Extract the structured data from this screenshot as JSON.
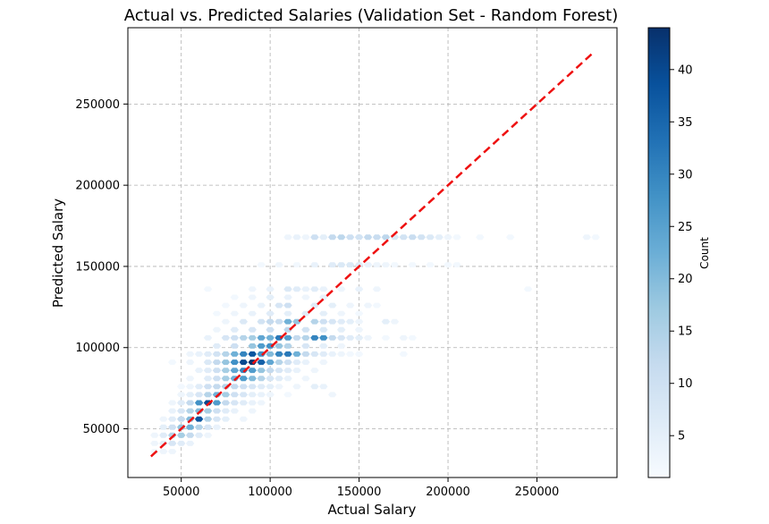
{
  "chart_data": {
    "type": "heatmap",
    "subtype": "hexbin",
    "title": "Actual vs. Predicted Salaries (Validation Set - Random Forest)",
    "xlabel": "Actual Salary",
    "ylabel": "Predicted Salary",
    "xlim": [
      20000,
      295000
    ],
    "ylim": [
      20000,
      297000
    ],
    "xticks": [
      "50000",
      "100000",
      "150000",
      "200000",
      "250000"
    ],
    "yticks": [
      "50000",
      "100000",
      "150000",
      "200000",
      "250000"
    ],
    "xtick_values": [
      50000,
      100000,
      150000,
      200000,
      250000
    ],
    "ytick_values": [
      50000,
      100000,
      150000,
      200000,
      250000
    ],
    "grid": true,
    "colormap": "Blues",
    "colorbar": {
      "label": "Count",
      "min": 1,
      "max": 44,
      "ticks": [
        "5",
        "10",
        "15",
        "20",
        "25",
        "30",
        "35",
        "40"
      ],
      "tick_values": [
        5,
        10,
        15,
        20,
        25,
        30,
        35,
        40
      ]
    },
    "reference_line": {
      "style": "dashed",
      "color": "#ee1111",
      "from": [
        33000,
        33000
      ],
      "to": [
        282000,
        282000
      ]
    },
    "cells": [
      [
        168000,
        110000,
        3
      ],
      [
        168000,
        115000,
        4
      ],
      [
        168000,
        120000,
        3
      ],
      [
        168000,
        125000,
        10
      ],
      [
        168000,
        130000,
        5
      ],
      [
        168000,
        135000,
        12
      ],
      [
        168000,
        140000,
        13
      ],
      [
        168000,
        145000,
        10
      ],
      [
        168000,
        150000,
        9
      ],
      [
        168000,
        155000,
        12
      ],
      [
        168000,
        160000,
        11
      ],
      [
        168000,
        165000,
        13
      ],
      [
        168000,
        170000,
        7
      ],
      [
        168000,
        175000,
        9
      ],
      [
        168000,
        180000,
        11
      ],
      [
        168000,
        185000,
        9
      ],
      [
        168000,
        190000,
        7
      ],
      [
        168000,
        195000,
        5
      ],
      [
        168000,
        200000,
        3
      ],
      [
        168000,
        205000,
        2
      ],
      [
        168000,
        218000,
        2
      ],
      [
        168000,
        235000,
        2
      ],
      [
        168000,
        278000,
        3
      ],
      [
        168000,
        283000,
        2
      ],
      [
        151000,
        95000,
        2
      ],
      [
        151000,
        105000,
        3
      ],
      [
        151000,
        115000,
        2
      ],
      [
        151000,
        125000,
        4
      ],
      [
        151000,
        135000,
        6
      ],
      [
        151000,
        140000,
        7
      ],
      [
        151000,
        145000,
        7
      ],
      [
        151000,
        150000,
        6
      ],
      [
        151000,
        155000,
        4
      ],
      [
        151000,
        160000,
        3
      ],
      [
        151000,
        165000,
        3
      ],
      [
        151000,
        170000,
        2
      ],
      [
        151000,
        180000,
        2
      ],
      [
        151000,
        190000,
        2
      ],
      [
        151000,
        200000,
        2
      ],
      [
        151000,
        205000,
        2
      ],
      [
        136000,
        65000,
        2
      ],
      [
        136000,
        90000,
        3
      ],
      [
        136000,
        100000,
        4
      ],
      [
        136000,
        110000,
        7
      ],
      [
        136000,
        115000,
        6
      ],
      [
        136000,
        120000,
        4
      ],
      [
        136000,
        125000,
        6
      ],
      [
        136000,
        130000,
        4
      ],
      [
        136000,
        140000,
        3
      ],
      [
        136000,
        150000,
        4
      ],
      [
        136000,
        160000,
        3
      ],
      [
        136000,
        245000,
        2
      ],
      [
        131000,
        80000,
        2
      ],
      [
        131000,
        90000,
        3
      ],
      [
        131000,
        100000,
        5
      ],
      [
        131000,
        110000,
        4
      ],
      [
        131000,
        120000,
        3
      ],
      [
        131000,
        130000,
        4
      ],
      [
        126000,
        75000,
        2
      ],
      [
        126000,
        85000,
        3
      ],
      [
        126000,
        95000,
        4
      ],
      [
        126000,
        105000,
        8
      ],
      [
        126000,
        110000,
        10
      ],
      [
        126000,
        125000,
        6
      ],
      [
        126000,
        135000,
        5
      ],
      [
        126000,
        145000,
        3
      ],
      [
        126000,
        155000,
        3
      ],
      [
        126000,
        160000,
        2
      ],
      [
        121000,
        70000,
        2
      ],
      [
        121000,
        80000,
        3
      ],
      [
        121000,
        90000,
        4
      ],
      [
        121000,
        100000,
        6
      ],
      [
        121000,
        110000,
        5
      ],
      [
        121000,
        120000,
        6
      ],
      [
        121000,
        130000,
        5
      ],
      [
        121000,
        140000,
        3
      ],
      [
        121000,
        150000,
        2
      ],
      [
        116000,
        75000,
        3
      ],
      [
        116000,
        85000,
        7
      ],
      [
        116000,
        95000,
        9
      ],
      [
        116000,
        100000,
        12
      ],
      [
        116000,
        105000,
        11
      ],
      [
        116000,
        110000,
        22
      ],
      [
        116000,
        115000,
        18
      ],
      [
        116000,
        125000,
        14
      ],
      [
        116000,
        130000,
        10
      ],
      [
        116000,
        135000,
        8
      ],
      [
        116000,
        140000,
        6
      ],
      [
        116000,
        145000,
        5
      ],
      [
        116000,
        150000,
        3
      ],
      [
        116000,
        165000,
        5
      ],
      [
        116000,
        170000,
        3
      ],
      [
        111000,
        70000,
        3
      ],
      [
        111000,
        80000,
        6
      ],
      [
        111000,
        90000,
        8
      ],
      [
        111000,
        100000,
        10
      ],
      [
        111000,
        110000,
        13
      ],
      [
        111000,
        120000,
        9
      ],
      [
        111000,
        130000,
        7
      ],
      [
        111000,
        140000,
        5
      ],
      [
        111000,
        150000,
        3
      ],
      [
        106000,
        65000,
        4
      ],
      [
        106000,
        75000,
        8
      ],
      [
        106000,
        80000,
        10
      ],
      [
        106000,
        85000,
        14
      ],
      [
        106000,
        90000,
        16
      ],
      [
        106000,
        95000,
        24
      ],
      [
        106000,
        100000,
        22
      ],
      [
        106000,
        105000,
        32
      ],
      [
        106000,
        110000,
        26
      ],
      [
        106000,
        115000,
        12
      ],
      [
        106000,
        120000,
        14
      ],
      [
        106000,
        125000,
        30
      ],
      [
        106000,
        130000,
        28
      ],
      [
        106000,
        135000,
        12
      ],
      [
        106000,
        140000,
        8
      ],
      [
        106000,
        145000,
        6
      ],
      [
        106000,
        150000,
        5
      ],
      [
        106000,
        155000,
        3
      ],
      [
        106000,
        165000,
        2
      ],
      [
        106000,
        175000,
        3
      ],
      [
        106000,
        180000,
        2
      ],
      [
        101000,
        70000,
        6
      ],
      [
        101000,
        80000,
        10
      ],
      [
        101000,
        90000,
        18
      ],
      [
        101000,
        95000,
        26
      ],
      [
        101000,
        100000,
        28
      ],
      [
        101000,
        105000,
        18
      ],
      [
        101000,
        110000,
        14
      ],
      [
        101000,
        120000,
        8
      ],
      [
        101000,
        130000,
        5
      ],
      [
        101000,
        140000,
        3
      ],
      [
        96000,
        55000,
        3
      ],
      [
        96000,
        60000,
        4
      ],
      [
        96000,
        65000,
        6
      ],
      [
        96000,
        70000,
        9
      ],
      [
        96000,
        75000,
        14
      ],
      [
        96000,
        80000,
        22
      ],
      [
        96000,
        85000,
        30
      ],
      [
        96000,
        90000,
        38
      ],
      [
        96000,
        95000,
        28
      ],
      [
        96000,
        100000,
        20
      ],
      [
        96000,
        105000,
        30
      ],
      [
        96000,
        110000,
        32
      ],
      [
        96000,
        115000,
        22
      ],
      [
        96000,
        120000,
        12
      ],
      [
        96000,
        125000,
        8
      ],
      [
        96000,
        130000,
        6
      ],
      [
        96000,
        135000,
        4
      ],
      [
        96000,
        140000,
        3
      ],
      [
        96000,
        145000,
        2
      ],
      [
        96000,
        150000,
        2
      ],
      [
        96000,
        175000,
        2
      ],
      [
        91000,
        45000,
        2
      ],
      [
        91000,
        55000,
        3
      ],
      [
        91000,
        65000,
        7
      ],
      [
        91000,
        70000,
        12
      ],
      [
        91000,
        75000,
        18
      ],
      [
        91000,
        80000,
        28
      ],
      [
        91000,
        85000,
        40
      ],
      [
        91000,
        90000,
        44
      ],
      [
        91000,
        95000,
        36
      ],
      [
        91000,
        100000,
        24
      ],
      [
        91000,
        105000,
        14
      ],
      [
        91000,
        110000,
        10
      ],
      [
        91000,
        115000,
        6
      ],
      [
        91000,
        120000,
        4
      ],
      [
        91000,
        130000,
        3
      ],
      [
        86000,
        60000,
        4
      ],
      [
        86000,
        65000,
        6
      ],
      [
        86000,
        70000,
        10
      ],
      [
        86000,
        75000,
        16
      ],
      [
        86000,
        80000,
        24
      ],
      [
        86000,
        85000,
        30
      ],
      [
        86000,
        90000,
        26
      ],
      [
        86000,
        95000,
        18
      ],
      [
        86000,
        100000,
        12
      ],
      [
        86000,
        105000,
        8
      ],
      [
        86000,
        110000,
        6
      ],
      [
        86000,
        115000,
        4
      ],
      [
        86000,
        125000,
        3
      ],
      [
        81000,
        55000,
        3
      ],
      [
        81000,
        65000,
        6
      ],
      [
        81000,
        70000,
        10
      ],
      [
        81000,
        75000,
        16
      ],
      [
        81000,
        80000,
        22
      ],
      [
        81000,
        85000,
        26
      ],
      [
        81000,
        90000,
        20
      ],
      [
        81000,
        95000,
        14
      ],
      [
        81000,
        100000,
        8
      ],
      [
        81000,
        105000,
        6
      ],
      [
        81000,
        110000,
        4
      ],
      [
        81000,
        120000,
        3
      ],
      [
        76000,
        50000,
        2
      ],
      [
        76000,
        55000,
        3
      ],
      [
        76000,
        60000,
        6
      ],
      [
        76000,
        65000,
        10
      ],
      [
        76000,
        70000,
        12
      ],
      [
        76000,
        75000,
        14
      ],
      [
        76000,
        80000,
        12
      ],
      [
        76000,
        85000,
        10
      ],
      [
        76000,
        90000,
        8
      ],
      [
        76000,
        95000,
        6
      ],
      [
        76000,
        100000,
        5
      ],
      [
        76000,
        105000,
        3
      ],
      [
        76000,
        115000,
        3
      ],
      [
        76000,
        125000,
        5
      ],
      [
        76000,
        130000,
        4
      ],
      [
        71000,
        50000,
        3
      ],
      [
        71000,
        55000,
        5
      ],
      [
        71000,
        60000,
        8
      ],
      [
        71000,
        65000,
        14
      ],
      [
        71000,
        70000,
        22
      ],
      [
        71000,
        75000,
        16
      ],
      [
        71000,
        80000,
        10
      ],
      [
        71000,
        85000,
        8
      ],
      [
        71000,
        90000,
        5
      ],
      [
        71000,
        95000,
        4
      ],
      [
        71000,
        100000,
        3
      ],
      [
        71000,
        110000,
        2
      ],
      [
        71000,
        135000,
        3
      ],
      [
        66000,
        45000,
        3
      ],
      [
        66000,
        50000,
        6
      ],
      [
        66000,
        55000,
        12
      ],
      [
        66000,
        60000,
        28
      ],
      [
        66000,
        65000,
        40
      ],
      [
        66000,
        70000,
        26
      ],
      [
        66000,
        75000,
        12
      ],
      [
        66000,
        80000,
        8
      ],
      [
        66000,
        85000,
        6
      ],
      [
        66000,
        90000,
        4
      ],
      [
        66000,
        95000,
        3
      ],
      [
        61000,
        45000,
        4
      ],
      [
        61000,
        50000,
        8
      ],
      [
        61000,
        55000,
        14
      ],
      [
        61000,
        60000,
        20
      ],
      [
        61000,
        65000,
        16
      ],
      [
        61000,
        70000,
        10
      ],
      [
        61000,
        75000,
        6
      ],
      [
        61000,
        80000,
        4
      ],
      [
        61000,
        90000,
        3
      ],
      [
        56000,
        40000,
        3
      ],
      [
        56000,
        45000,
        6
      ],
      [
        56000,
        50000,
        12
      ],
      [
        56000,
        55000,
        20
      ],
      [
        56000,
        60000,
        38
      ],
      [
        56000,
        65000,
        14
      ],
      [
        56000,
        70000,
        8
      ],
      [
        56000,
        75000,
        5
      ],
      [
        56000,
        85000,
        3
      ],
      [
        51000,
        40000,
        5
      ],
      [
        51000,
        45000,
        10
      ],
      [
        51000,
        50000,
        18
      ],
      [
        51000,
        55000,
        22
      ],
      [
        51000,
        60000,
        14
      ],
      [
        51000,
        65000,
        8
      ],
      [
        51000,
        70000,
        4
      ],
      [
        46000,
        35000,
        3
      ],
      [
        46000,
        40000,
        6
      ],
      [
        46000,
        45000,
        14
      ],
      [
        46000,
        50000,
        16
      ],
      [
        46000,
        55000,
        12
      ],
      [
        46000,
        60000,
        6
      ],
      [
        46000,
        65000,
        3
      ],
      [
        41000,
        35000,
        3
      ],
      [
        41000,
        40000,
        5
      ],
      [
        41000,
        45000,
        8
      ],
      [
        41000,
        50000,
        6
      ],
      [
        41000,
        55000,
        4
      ],
      [
        36000,
        35000,
        2
      ],
      [
        36000,
        40000,
        3
      ],
      [
        36000,
        45000,
        3
      ]
    ]
  }
}
